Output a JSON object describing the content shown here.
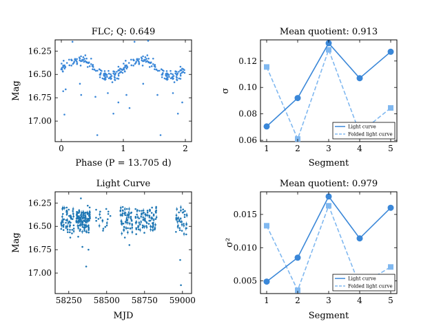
{
  "chart_data": [
    {
      "type": "scatter",
      "title": "FLC; Q: 0.649",
      "xlabel": "Phase (P = 13.705 d)",
      "ylabel": "Mag",
      "xlim": [
        -0.1,
        2.1
      ],
      "ylim": [
        17.22,
        16.13
      ],
      "y_inverted": true,
      "xticks": [
        0,
        1,
        2
      ],
      "yticks": [
        16.25,
        16.5,
        16.75,
        17.0
      ],
      "ytick_labels": [
        "16.25",
        "16.50",
        "16.75",
        "17.00"
      ],
      "color": "#3a87d8",
      "folded_curve": {
        "phase": [
          0.0,
          0.1,
          0.2,
          0.3,
          0.4,
          0.5,
          0.6,
          0.7,
          0.8,
          0.9,
          1.0
        ],
        "mag": [
          16.44,
          16.39,
          16.36,
          16.34,
          16.35,
          16.41,
          16.47,
          16.51,
          16.53,
          16.49,
          16.44
        ],
        "scatter": 0.035,
        "points_per_cycle": 130
      },
      "outliers": [
        {
          "x": 0.03,
          "y": 16.68
        },
        {
          "x": 0.05,
          "y": 16.93
        },
        {
          "x": 0.07,
          "y": 16.66
        },
        {
          "x": 0.18,
          "y": 16.15
        },
        {
          "x": 0.3,
          "y": 16.6
        },
        {
          "x": 0.32,
          "y": 16.72
        },
        {
          "x": 0.55,
          "y": 16.74
        },
        {
          "x": 0.58,
          "y": 17.15
        },
        {
          "x": 0.75,
          "y": 16.7
        },
        {
          "x": 0.84,
          "y": 16.92
        },
        {
          "x": 0.92,
          "y": 16.8
        },
        {
          "x": 1.05,
          "y": 16.72
        },
        {
          "x": 1.1,
          "y": 16.86
        },
        {
          "x": 1.18,
          "y": 16.15
        },
        {
          "x": 1.32,
          "y": 16.6
        },
        {
          "x": 1.4,
          "y": 16.14
        },
        {
          "x": 1.55,
          "y": 16.72
        },
        {
          "x": 1.6,
          "y": 17.15
        },
        {
          "x": 1.8,
          "y": 16.7
        },
        {
          "x": 1.88,
          "y": 16.92
        },
        {
          "x": 1.95,
          "y": 16.8
        }
      ]
    },
    {
      "type": "line",
      "title": "Mean quotient: 0.913",
      "xlabel": "Segment",
      "ylabel": "σ",
      "xlim": [
        0.8,
        5.2
      ],
      "ylim": [
        0.059,
        0.136
      ],
      "xticks": [
        1,
        2,
        3,
        4,
        5
      ],
      "yticks": [
        0.06,
        0.08,
        0.1,
        0.12
      ],
      "ytick_labels": [
        "0.06",
        "0.08",
        "0.10",
        "0.12"
      ],
      "categories": [
        1,
        2,
        3,
        4,
        5
      ],
      "series": [
        {
          "name": "Light curve",
          "values": [
            0.0705,
            0.092,
            0.1335,
            0.107,
            0.127
          ],
          "color": "#3a87d8",
          "marker": "circle",
          "style": "solid"
        },
        {
          "name": "Folded light curve",
          "values": [
            0.1155,
            0.061,
            0.1285,
            0.0655,
            0.0845
          ],
          "color": "#80b8f0",
          "marker": "square",
          "style": "dashed"
        }
      ],
      "legend": "lower-right"
    },
    {
      "type": "scatter",
      "title": "Light Curve",
      "xlabel": "MJD",
      "ylabel": "Mag",
      "xlim": [
        58160,
        59060
      ],
      "ylim": [
        17.22,
        16.13
      ],
      "y_inverted": true,
      "xticks": [
        58250,
        58500,
        58750,
        59000
      ],
      "yticks": [
        16.25,
        16.5,
        16.75,
        17.0
      ],
      "ytick_labels": [
        "16.25",
        "16.50",
        "16.75",
        "17.00"
      ],
      "color": "#1f77b4",
      "period_days": 13.705,
      "observing_seasons": [
        {
          "x0": 58200,
          "x1": 58290,
          "n": 60
        },
        {
          "x0": 58300,
          "x1": 58390,
          "n": 130
        },
        {
          "x0": 58430,
          "x1": 58530,
          "n": 20
        },
        {
          "x0": 58590,
          "x1": 58670,
          "n": 60
        },
        {
          "x0": 58690,
          "x1": 58830,
          "n": 90
        },
        {
          "x0": 58950,
          "x1": 59030,
          "n": 40
        }
      ],
      "outliers": [
        {
          "x": 58365,
          "y": 16.93
        },
        {
          "x": 58340,
          "y": 16.72
        },
        {
          "x": 58380,
          "y": 16.75
        },
        {
          "x": 58260,
          "y": 16.62
        },
        {
          "x": 58650,
          "y": 16.7
        },
        {
          "x": 58985,
          "y": 16.86
        },
        {
          "x": 58990,
          "y": 17.13
        },
        {
          "x": 58620,
          "y": 16.62
        },
        {
          "x": 58330,
          "y": 16.2
        }
      ]
    },
    {
      "type": "line",
      "title": "Mean quotient: 0.979",
      "xlabel": "Segment",
      "ylabel": "σ²",
      "xlim": [
        0.8,
        5.2
      ],
      "ylim": [
        0.0031,
        0.0184
      ],
      "xticks": [
        1,
        2,
        3,
        4,
        5
      ],
      "yticks": [
        0.005,
        0.01,
        0.015
      ],
      "ytick_labels": [
        "0.005",
        "0.010",
        "0.015"
      ],
      "categories": [
        1,
        2,
        3,
        4,
        5
      ],
      "series": [
        {
          "name": "Light curve",
          "values": [
            0.0049,
            0.0085,
            0.0177,
            0.0114,
            0.016
          ],
          "color": "#3a87d8",
          "marker": "circle",
          "style": "solid"
        },
        {
          "name": "Folded light curve",
          "values": [
            0.0133,
            0.0036,
            0.0163,
            0.0043,
            0.0071
          ],
          "color": "#80b8f0",
          "marker": "square",
          "style": "dashed"
        }
      ],
      "legend": "lower-right"
    }
  ]
}
